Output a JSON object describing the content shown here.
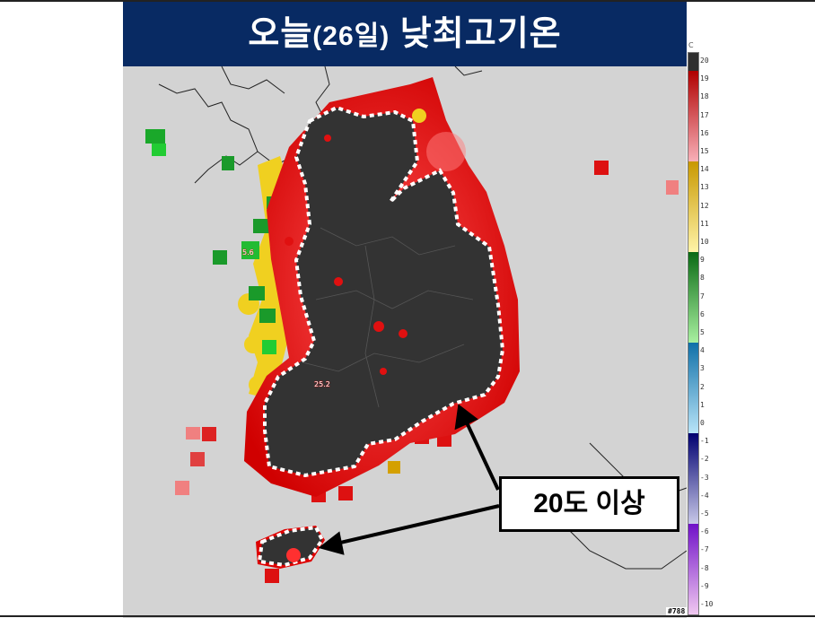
{
  "title": {
    "main": "오늘",
    "paren": "(26일)",
    "rest": " 낮최고기온"
  },
  "callout": {
    "label": "20도 이상"
  },
  "map_labels": {
    "west_station": "5.6",
    "inland_station": "25.2"
  },
  "stamp": "#788",
  "colorbar": {
    "unit": "C",
    "labels": [
      "20",
      "19",
      "18",
      "17",
      "16",
      "15",
      "14",
      "13",
      "12",
      "11",
      "10",
      "9",
      "8",
      "7",
      "6",
      "5",
      "4",
      "3",
      "2",
      "1",
      "0",
      "-1",
      "-2",
      "-3",
      "-4",
      "-5",
      "-6",
      "-7",
      "-8",
      "-9",
      "-10"
    ],
    "ranges": [
      {
        "from": 20,
        "to": 21,
        "top": "#303030",
        "bottom": "#303030"
      },
      {
        "from": 15,
        "to": 20,
        "top": "#b00000",
        "bottom": "#f8b0b8"
      },
      {
        "from": 10,
        "to": 15,
        "top": "#c89800",
        "bottom": "#fff4a8"
      },
      {
        "from": 5,
        "to": 10,
        "top": "#0a6a14",
        "bottom": "#a8f0a0"
      },
      {
        "from": 0,
        "to": 5,
        "top": "#1070a8",
        "bottom": "#b8e4f8"
      },
      {
        "from": -5,
        "to": 0,
        "top": "#000070",
        "bottom": "#c8c8e8"
      },
      {
        "from": -10,
        "to": -5,
        "top": "#7010c8",
        "bottom": "#f0c8f0"
      }
    ]
  },
  "colors": {
    "title_bg": "#082a63",
    "land_above_20": "#333333",
    "warm": "#dd1111",
    "mild": "#f0d020",
    "cool": "#1a9a2a",
    "sea": "#d3d3d3"
  }
}
